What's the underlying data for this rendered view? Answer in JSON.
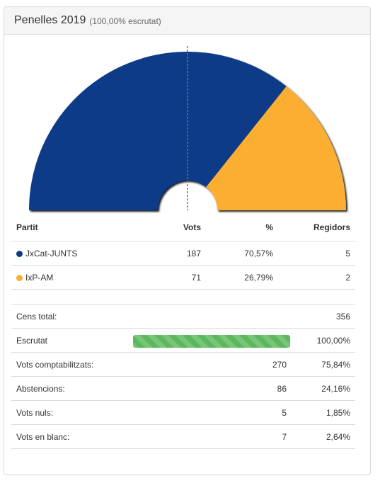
{
  "header": {
    "title": "Penelles 2019",
    "subtitle": "(100,00% escrutat)"
  },
  "table": {
    "headers": [
      "Partit",
      "Vots",
      "%",
      "Regidors"
    ],
    "rows": [
      {
        "party": "JxCat-JUNTS",
        "votes": "187",
        "pct": "70,57%",
        "seats": "5",
        "color": "#0e3b87"
      },
      {
        "party": "IxP-AM",
        "votes": "71",
        "pct": "26,79%",
        "seats": "2",
        "color": "#fbae32"
      }
    ]
  },
  "summary": {
    "cens": {
      "label": "Cens total:",
      "value": "356"
    },
    "escrutat": {
      "label": "Escrutat",
      "value": "100,00%",
      "progress": 1.0
    },
    "comptabilitzats": {
      "label": "Vots comptabilitzats:",
      "count": "270",
      "pct": "75,84%"
    },
    "abstencions": {
      "label": "Abstencions:",
      "count": "86",
      "pct": "24,16%"
    },
    "nuls": {
      "label": "Vots nuls:",
      "count": "5",
      "pct": "1,85%"
    },
    "blanc": {
      "label": "Vots en blanc:",
      "count": "7",
      "pct": "2,64%"
    }
  },
  "chart_data": {
    "type": "pie",
    "shape": "half-donut",
    "categories": [
      "JxCat-JUNTS",
      "IxP-AM"
    ],
    "values": [
      5,
      2
    ],
    "colors": [
      "#0e3b87",
      "#fbae32"
    ],
    "majority_line": true
  }
}
